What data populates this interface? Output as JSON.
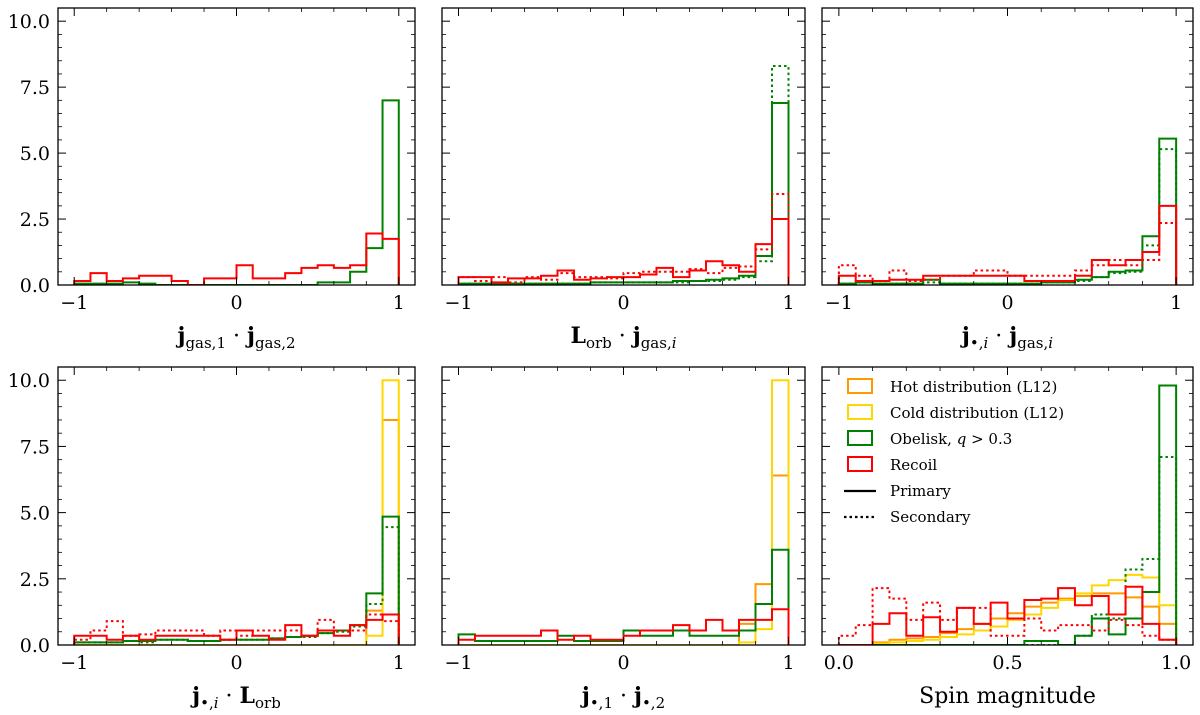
{
  "figure": {
    "legend": [
      {
        "label": "Hot distribution (L12)",
        "color": "#ff9900",
        "kind": "box"
      },
      {
        "label": "Cold distribution (L12)",
        "color": "#ffd700",
        "kind": "box"
      },
      {
        "label": "Obelisk, q > 0.3",
        "color": "#008000",
        "kind": "box"
      },
      {
        "label": "Recoil",
        "color": "#ff0000",
        "kind": "box"
      },
      {
        "label": "Primary",
        "color": "#000000",
        "kind": "solid"
      },
      {
        "label": "Secondary",
        "color": "#000000",
        "kind": "dotted"
      }
    ],
    "legend_placement": "upper-left of bottom-right panel"
  },
  "chart_data": [
    {
      "type": "histogram",
      "xlabel": "j_gas,1 · j_gas,2",
      "xlim": [
        -1.1,
        1.1
      ],
      "ylim": [
        0,
        10.5
      ],
      "xticks": [
        -1,
        0,
        1
      ],
      "yticks": [
        0.0,
        2.5,
        5.0,
        7.5,
        10.0
      ],
      "ytick_labels": [
        "0.0",
        "2.5",
        "5.0",
        "7.5",
        "10.0"
      ],
      "bin_edges": [
        -1.0,
        -0.9,
        -0.8,
        -0.7,
        -0.6,
        -0.5,
        -0.4,
        -0.3,
        -0.2,
        -0.1,
        0.0,
        0.1,
        0.2,
        0.3,
        0.4,
        0.5,
        0.6,
        0.7,
        0.8,
        0.9,
        1.0
      ],
      "series": [
        {
          "name": "Obelisk, q > 0.3",
          "style": "solid",
          "color": "#008000",
          "values": [
            0.05,
            0.05,
            0.05,
            0.1,
            0.05,
            0.0,
            0.0,
            0.0,
            0.0,
            0.0,
            0.0,
            0.0,
            0.0,
            0.0,
            0.0,
            0.1,
            0.1,
            0.5,
            1.4,
            7.0
          ]
        },
        {
          "name": "Recoil",
          "style": "solid",
          "color": "#ff0000",
          "values": [
            0.15,
            0.45,
            0.15,
            0.25,
            0.35,
            0.35,
            0.15,
            0.0,
            0.25,
            0.25,
            0.75,
            0.25,
            0.25,
            0.45,
            0.65,
            0.75,
            0.65,
            0.75,
            1.95,
            1.75
          ]
        }
      ]
    },
    {
      "type": "histogram",
      "xlabel": "L_orb · j_gas,i",
      "xlim": [
        -1.1,
        1.1
      ],
      "ylim": [
        0,
        10.5
      ],
      "xticks": [
        -1,
        0,
        1
      ],
      "yticks": [
        0.0,
        2.5,
        5.0,
        7.5,
        10.0
      ],
      "ytick_labels": [
        "",
        "",
        "",
        "",
        ""
      ],
      "bin_edges": [
        -1.0,
        -0.9,
        -0.8,
        -0.7,
        -0.6,
        -0.5,
        -0.4,
        -0.3,
        -0.2,
        -0.1,
        0.0,
        0.1,
        0.2,
        0.3,
        0.4,
        0.5,
        0.6,
        0.7,
        0.8,
        0.9,
        1.0
      ],
      "series": [
        {
          "name": "Obelisk, q > 0.3",
          "style": "solid",
          "color": "#008000",
          "values": [
            0.05,
            0.05,
            0.05,
            0.05,
            0.05,
            0.05,
            0.05,
            0.05,
            0.1,
            0.1,
            0.1,
            0.1,
            0.1,
            0.15,
            0.15,
            0.2,
            0.25,
            0.35,
            1.1,
            6.9
          ]
        },
        {
          "name": "Obelisk, q > 0.3",
          "style": "dotted",
          "color": "#008000",
          "values": [
            0.05,
            0.05,
            0.05,
            0.05,
            0.05,
            0.05,
            0.05,
            0.05,
            0.1,
            0.1,
            0.1,
            0.1,
            0.1,
            0.1,
            0.15,
            0.15,
            0.2,
            0.3,
            0.9,
            8.3
          ]
        },
        {
          "name": "Recoil",
          "style": "solid",
          "color": "#ff0000",
          "values": [
            0.3,
            0.3,
            0.1,
            0.25,
            0.25,
            0.35,
            0.55,
            0.2,
            0.25,
            0.3,
            0.3,
            0.4,
            0.65,
            0.3,
            0.55,
            0.9,
            0.75,
            0.5,
            1.55,
            2.5
          ]
        },
        {
          "name": "Recoil",
          "style": "dotted",
          "color": "#ff0000",
          "values": [
            0.3,
            0.15,
            0.3,
            0.1,
            0.3,
            0.2,
            0.45,
            0.3,
            0.3,
            0.25,
            0.45,
            0.5,
            0.5,
            0.5,
            0.6,
            0.45,
            0.65,
            0.7,
            1.35,
            3.45
          ]
        }
      ]
    },
    {
      "type": "histogram",
      "xlabel": "j_•,i · j_gas,i",
      "xlim": [
        -1.1,
        1.1
      ],
      "ylim": [
        0,
        10.5
      ],
      "xticks": [
        -1,
        0,
        1
      ],
      "yticks": [
        0.0,
        2.5,
        5.0,
        7.5,
        10.0
      ],
      "ytick_labels": [
        "",
        "",
        "",
        "",
        ""
      ],
      "bin_edges": [
        -1.0,
        -0.9,
        -0.8,
        -0.7,
        -0.6,
        -0.5,
        -0.4,
        -0.3,
        -0.2,
        -0.1,
        0.0,
        0.1,
        0.2,
        0.3,
        0.4,
        0.5,
        0.6,
        0.7,
        0.8,
        0.9,
        1.0
      ],
      "series": [
        {
          "name": "Obelisk, q > 0.3",
          "style": "solid",
          "color": "#008000",
          "values": [
            0.05,
            0.1,
            0.05,
            0.05,
            0.05,
            0.2,
            0.05,
            0.05,
            0.05,
            0.05,
            0.05,
            0.05,
            0.1,
            0.1,
            0.2,
            0.3,
            0.5,
            0.55,
            1.85,
            5.55
          ]
        },
        {
          "name": "Obelisk, q > 0.3",
          "style": "dotted",
          "color": "#008000",
          "values": [
            0.05,
            0.1,
            0.05,
            0.05,
            0.05,
            0.1,
            0.05,
            0.05,
            0.05,
            0.05,
            0.05,
            0.05,
            0.1,
            0.1,
            0.15,
            0.3,
            0.45,
            0.5,
            1.5,
            5.15
          ]
        },
        {
          "name": "Recoil",
          "style": "solid",
          "color": "#ff0000",
          "values": [
            0.35,
            0.15,
            0.15,
            0.2,
            0.2,
            0.35,
            0.35,
            0.35,
            0.35,
            0.35,
            0.35,
            0.15,
            0.15,
            0.15,
            0.35,
            0.95,
            0.75,
            0.95,
            1.25,
            3.0
          ]
        },
        {
          "name": "Recoil",
          "style": "dotted",
          "color": "#ff0000",
          "values": [
            0.75,
            0.35,
            0.15,
            0.55,
            0.15,
            0.2,
            0.35,
            0.35,
            0.55,
            0.55,
            0.35,
            0.35,
            0.35,
            0.35,
            0.55,
            0.75,
            0.95,
            0.75,
            0.95,
            2.35
          ]
        }
      ]
    },
    {
      "type": "histogram",
      "xlabel": "j_•,i · L_orb",
      "xlim": [
        -1.1,
        1.1
      ],
      "ylim": [
        0,
        10.5
      ],
      "xticks": [
        -1,
        0,
        1
      ],
      "yticks": [
        0.0,
        2.5,
        5.0,
        7.5,
        10.0
      ],
      "ytick_labels": [
        "0.0",
        "2.5",
        "5.0",
        "7.5",
        "10.0"
      ],
      "bin_edges": [
        -1.0,
        -0.9,
        -0.8,
        -0.7,
        -0.6,
        -0.5,
        -0.4,
        -0.3,
        -0.2,
        -0.1,
        0.0,
        0.1,
        0.2,
        0.3,
        0.4,
        0.5,
        0.6,
        0.7,
        0.8,
        0.9,
        1.0
      ],
      "series": [
        {
          "name": "Hot distribution (L12)",
          "style": "solid",
          "color": "#ff9900",
          "values": [
            0.0,
            0.0,
            0.0,
            0.0,
            0.0,
            0.0,
            0.0,
            0.0,
            0.0,
            0.0,
            0.0,
            0.0,
            0.0,
            0.0,
            0.0,
            0.0,
            0.0,
            0.0,
            1.3,
            8.5
          ]
        },
        {
          "name": "Cold distribution (L12)",
          "style": "solid",
          "color": "#ffd700",
          "values": [
            0.0,
            0.0,
            0.0,
            0.0,
            0.0,
            0.0,
            0.0,
            0.0,
            0.0,
            0.0,
            0.0,
            0.0,
            0.0,
            0.0,
            0.0,
            0.0,
            0.0,
            0.0,
            0.35,
            10.0
          ]
        },
        {
          "name": "Obelisk, q > 0.3",
          "style": "solid",
          "color": "#008000",
          "values": [
            0.1,
            0.1,
            0.1,
            0.15,
            0.15,
            0.2,
            0.2,
            0.15,
            0.15,
            0.2,
            0.2,
            0.2,
            0.25,
            0.3,
            0.35,
            0.45,
            0.55,
            0.75,
            1.95,
            4.85
          ]
        },
        {
          "name": "Obelisk, q > 0.3",
          "style": "dotted",
          "color": "#008000",
          "values": [
            0.1,
            0.1,
            0.1,
            0.15,
            0.1,
            0.2,
            0.2,
            0.15,
            0.15,
            0.2,
            0.2,
            0.2,
            0.25,
            0.3,
            0.3,
            0.45,
            0.5,
            0.7,
            1.55,
            4.45
          ]
        },
        {
          "name": "Recoil",
          "style": "solid",
          "color": "#ff0000",
          "values": [
            0.35,
            0.35,
            0.2,
            0.35,
            0.2,
            0.35,
            0.35,
            0.35,
            0.35,
            0.2,
            0.55,
            0.35,
            0.2,
            0.75,
            0.35,
            0.55,
            0.35,
            0.75,
            0.95,
            1.15
          ]
        },
        {
          "name": "Recoil",
          "style": "dotted",
          "color": "#ff0000",
          "values": [
            0.2,
            0.55,
            0.9,
            0.35,
            0.4,
            0.55,
            0.55,
            0.55,
            0.35,
            0.55,
            0.35,
            0.55,
            0.55,
            0.55,
            0.35,
            0.95,
            0.55,
            0.55,
            1.15,
            0.9
          ]
        }
      ]
    },
    {
      "type": "histogram",
      "xlabel": "j_•,1 · j_•,2",
      "xlim": [
        -1.1,
        1.1
      ],
      "ylim": [
        0,
        10.5
      ],
      "xticks": [
        -1,
        0,
        1
      ],
      "yticks": [
        0.0,
        2.5,
        5.0,
        7.5,
        10.0
      ],
      "ytick_labels": [
        "",
        "",
        "",
        "",
        ""
      ],
      "bin_edges": [
        -1.0,
        -0.9,
        -0.8,
        -0.7,
        -0.6,
        -0.5,
        -0.4,
        -0.3,
        -0.2,
        -0.1,
        0.0,
        0.1,
        0.2,
        0.3,
        0.4,
        0.5,
        0.6,
        0.7,
        0.8,
        0.9,
        1.0
      ],
      "series": [
        {
          "name": "Hot distribution (L12)",
          "style": "solid",
          "color": "#ff9900",
          "values": [
            0.0,
            0.0,
            0.0,
            0.0,
            0.0,
            0.0,
            0.0,
            0.0,
            0.0,
            0.0,
            0.0,
            0.0,
            0.0,
            0.0,
            0.0,
            0.0,
            0.0,
            0.8,
            2.3,
            6.4
          ]
        },
        {
          "name": "Cold distribution (L12)",
          "style": "solid",
          "color": "#ffd700",
          "values": [
            0.0,
            0.0,
            0.0,
            0.0,
            0.0,
            0.0,
            0.0,
            0.0,
            0.0,
            0.0,
            0.0,
            0.0,
            0.0,
            0.0,
            0.0,
            0.0,
            0.0,
            0.1,
            0.6,
            10.0
          ]
        },
        {
          "name": "Obelisk, q > 0.3",
          "style": "solid",
          "color": "#008000",
          "values": [
            0.4,
            0.15,
            0.15,
            0.15,
            0.15,
            0.15,
            0.35,
            0.15,
            0.15,
            0.15,
            0.55,
            0.35,
            0.35,
            0.55,
            0.35,
            0.35,
            0.35,
            0.55,
            1.55,
            3.6
          ]
        },
        {
          "name": "Recoil",
          "style": "solid",
          "color": "#ff0000",
          "values": [
            0.2,
            0.35,
            0.35,
            0.35,
            0.35,
            0.55,
            0.2,
            0.35,
            0.2,
            0.2,
            0.35,
            0.55,
            0.55,
            0.75,
            0.55,
            0.95,
            0.55,
            0.95,
            0.95,
            1.35
          ]
        }
      ]
    },
    {
      "type": "histogram",
      "xlabel": "Spin magnitude",
      "xlim": [
        -0.05,
        1.05
      ],
      "ylim": [
        0,
        10.5
      ],
      "xticks": [
        0.0,
        0.5,
        1.0
      ],
      "yticks": [
        0.0,
        2.5,
        5.0,
        7.5,
        10.0
      ],
      "xtick_labels": [
        "0.0",
        "0.5",
        "1.0"
      ],
      "ytick_labels": [
        "",
        "",
        "",
        "",
        ""
      ],
      "bin_edges": [
        0.0,
        0.05,
        0.1,
        0.15,
        0.2,
        0.25,
        0.3,
        0.35,
        0.4,
        0.45,
        0.5,
        0.55,
        0.6,
        0.65,
        0.7,
        0.75,
        0.8,
        0.85,
        0.9,
        0.95,
        1.0
      ],
      "series": [
        {
          "name": "Hot distribution (L12)",
          "style": "solid",
          "color": "#ff9900",
          "values": [
            0.0,
            0.0,
            0.1,
            0.2,
            0.25,
            0.3,
            0.45,
            0.6,
            0.8,
            1.0,
            1.2,
            1.45,
            1.6,
            1.75,
            1.85,
            1.95,
            1.95,
            1.8,
            1.45,
            0.8
          ]
        },
        {
          "name": "Cold distribution (L12)",
          "style": "solid",
          "color": "#ffd700",
          "values": [
            0.0,
            0.0,
            0.05,
            0.1,
            0.15,
            0.2,
            0.3,
            0.4,
            0.55,
            0.7,
            0.95,
            1.15,
            1.4,
            1.7,
            1.95,
            2.25,
            2.45,
            2.65,
            2.55,
            1.5
          ]
        },
        {
          "name": "Obelisk, q > 0.3",
          "style": "solid",
          "color": "#008000",
          "values": [
            0.0,
            0.0,
            0.0,
            0.0,
            0.0,
            0.0,
            0.0,
            0.0,
            0.0,
            0.0,
            0.0,
            0.15,
            0.15,
            0.0,
            0.35,
            1.0,
            0.4,
            1.0,
            2.0,
            9.8
          ]
        },
        {
          "name": "Obelisk, q > 0.3",
          "style": "dotted",
          "color": "#008000",
          "values": [
            0.0,
            0.0,
            0.0,
            0.0,
            0.0,
            0.0,
            0.0,
            0.0,
            0.0,
            0.0,
            0.0,
            0.0,
            0.0,
            0.0,
            0.35,
            1.15,
            1.0,
            2.85,
            3.25,
            7.1
          ]
        },
        {
          "name": "Recoil",
          "style": "solid",
          "color": "#ff0000",
          "values": [
            0.0,
            0.0,
            0.8,
            1.2,
            0.35,
            1.05,
            0.5,
            1.4,
            0.8,
            1.6,
            1.0,
            1.7,
            1.75,
            2.15,
            1.5,
            1.85,
            1.15,
            2.2,
            0.8,
            0.2
          ]
        },
        {
          "name": "Recoil",
          "style": "dotted",
          "color": "#ff0000",
          "values": [
            0.35,
            0.75,
            2.15,
            1.75,
            0.95,
            1.6,
            0.95,
            1.4,
            1.4,
            0.35,
            0.35,
            1.0,
            0.55,
            0.75,
            0.75,
            0.55,
            0.95,
            0.75,
            0.35,
            0.2
          ]
        }
      ]
    }
  ]
}
